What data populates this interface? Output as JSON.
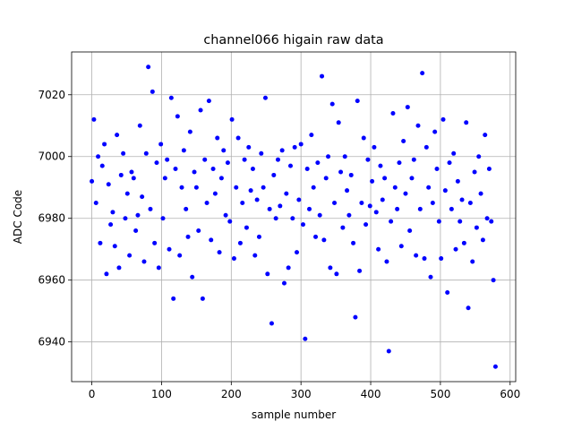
{
  "chart_data": {
    "type": "scatter",
    "title": "channel066 higain raw data",
    "xlabel": "sample number",
    "ylabel": "ADC Code",
    "color": "#0000ff",
    "grid": true,
    "xlim": [
      -29,
      608
    ],
    "ylim": [
      6927.15,
      7033.85
    ],
    "xticks": [
      0,
      100,
      200,
      300,
      400,
      500,
      600
    ],
    "yticks": [
      6940,
      6960,
      6980,
      7000,
      7020
    ],
    "x": [
      0,
      3,
      6,
      9,
      12,
      15,
      18,
      21,
      24,
      27,
      30,
      33,
      36,
      39,
      42,
      45,
      48,
      51,
      54,
      57,
      60,
      63,
      66,
      69,
      72,
      75,
      78,
      81,
      84,
      87,
      90,
      93,
      96,
      99,
      102,
      105,
      108,
      111,
      114,
      117,
      120,
      123,
      126,
      129,
      132,
      135,
      138,
      141,
      144,
      147,
      150,
      153,
      156,
      159,
      162,
      165,
      168,
      171,
      174,
      177,
      180,
      183,
      186,
      189,
      192,
      195,
      198,
      201,
      204,
      207,
      210,
      213,
      216,
      219,
      222,
      225,
      228,
      231,
      234,
      237,
      240,
      243,
      246,
      249,
      252,
      255,
      258,
      261,
      264,
      267,
      270,
      273,
      276,
      279,
      282,
      285,
      288,
      291,
      294,
      297,
      300,
      303,
      306,
      309,
      312,
      315,
      318,
      321,
      324,
      327,
      330,
      333,
      336,
      339,
      342,
      345,
      348,
      351,
      354,
      357,
      360,
      363,
      366,
      369,
      372,
      375,
      378,
      381,
      384,
      387,
      390,
      393,
      396,
      399,
      402,
      405,
      408,
      411,
      414,
      417,
      420,
      423,
      426,
      429,
      432,
      435,
      438,
      441,
      444,
      447,
      450,
      453,
      456,
      459,
      462,
      465,
      468,
      471,
      474,
      477,
      480,
      483,
      486,
      489,
      492,
      495,
      498,
      501,
      504,
      507,
      510,
      513,
      516,
      519,
      522,
      525,
      528,
      531,
      534,
      537,
      540,
      543,
      546,
      549,
      552,
      555,
      558,
      561,
      564,
      567,
      570,
      573,
      576,
      579
    ],
    "values": [
      6992,
      7012,
      6985,
      7000,
      6972,
      6997,
      7004,
      6962,
      6991,
      6978,
      6982,
      6971,
      7007,
      6964,
      6994,
      7001,
      6980,
      6988,
      6968,
      6995,
      6993,
      6976,
      6981,
      7010,
      6987,
      6966,
      7001,
      7029,
      6983,
      7021,
      6972,
      6998,
      6964,
      7004,
      6980,
      6993,
      6999,
      6970,
      7019,
      6954,
      6996,
      7013,
      6968,
      6990,
      7002,
      6983,
      6974,
      7008,
      6961,
      6995,
      6990,
      6976,
      7015,
      6954,
      6999,
      6985,
      7018,
      6973,
      6996,
      6988,
      7006,
      6969,
      6993,
      7002,
      6981,
      6998,
      6979,
      7012,
      6967,
      6990,
      7006,
      6972,
      6985,
      6999,
      6977,
      7003,
      6989,
      6996,
      6968,
      6986,
      6974,
      7001,
      6990,
      7019,
      6962,
      6983,
      6946,
      6994,
      6980,
      6999,
      6984,
      7002,
      6959,
      6988,
      6964,
      6997,
      6980,
      7003,
      6969,
      6986,
      7004,
      6978,
      6941,
      6996,
      6983,
      7007,
      6990,
      6974,
      6998,
      6981,
      7026,
      6973,
      6993,
      7000,
      6964,
      7017,
      6985,
      6962,
      7011,
      6995,
      6977,
      7000,
      6989,
      6981,
      6994,
      6972,
      6948,
      7018,
      6963,
      6985,
      7006,
      6978,
      6999,
      6984,
      6992,
      7003,
      6982,
      6970,
      6997,
      6986,
      6993,
      6966,
      6937,
      6979,
      7014,
      6990,
      6983,
      6998,
      6971,
      7005,
      6988,
      7016,
      6976,
      6993,
      6999,
      6968,
      7010,
      6983,
      7027,
      6967,
      7003,
      6990,
      6961,
      6985,
      7008,
      6996,
      6979,
      6967,
      7012,
      6989,
      6956,
      6998,
      6983,
      7001,
      6970,
      6992,
      6979,
      6986,
      6972,
      7011,
      6951,
      6985,
      6966,
      6995,
      6977,
      7000,
      6988,
      6973,
      7007,
      6980,
      6996,
      6979,
      6960,
      6932
    ]
  }
}
